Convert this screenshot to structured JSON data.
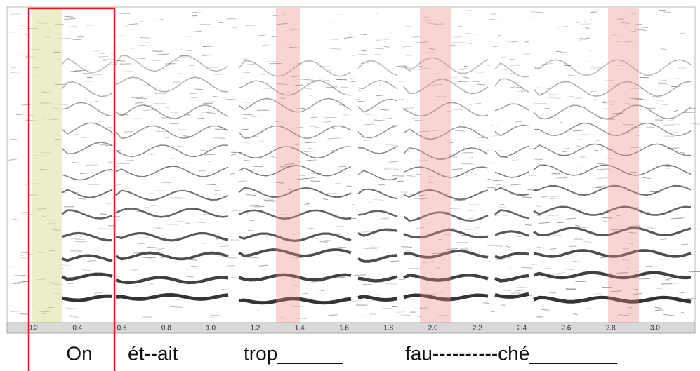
{
  "axis": {
    "tick_labels": [
      "0.2",
      "0.4",
      "0.6",
      "0.8",
      "1.0",
      "1.2",
      "1.4",
      "1.6",
      "1.8",
      "2.0",
      "2.2",
      "2.4",
      "2.6",
      "2.8",
      "3.0"
    ]
  },
  "words": [
    "On",
    "ét--ait",
    "trop______",
    "fau----------ché________"
  ]
}
